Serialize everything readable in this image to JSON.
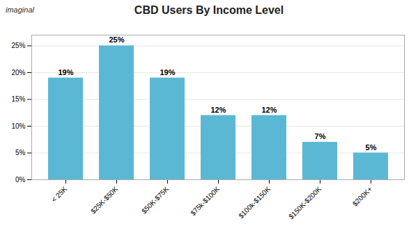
{
  "chart_data": {
    "type": "bar",
    "title": "CBD Users By Income Level",
    "categories": [
      "< 25K",
      "$25K-$50K",
      "$50K-$75K",
      "$75k-$100K",
      "$100k-$150K",
      "$150K-$200K",
      "$200K+"
    ],
    "values": [
      19,
      25,
      19,
      12,
      12,
      7,
      5
    ],
    "value_labels": [
      "19%",
      "25%",
      "19%",
      "12%",
      "12%",
      "7%",
      "5%"
    ],
    "data_labels": true,
    "color": "#5BB8D4",
    "ylim": [
      0,
      27
    ],
    "yticks": [
      {
        "value": 0,
        "label": "0%"
      },
      {
        "value": 5,
        "label": "5%"
      },
      {
        "value": 10,
        "label": "10%"
      },
      {
        "value": 15,
        "label": "15%"
      },
      {
        "value": 20,
        "label": "20%"
      },
      {
        "value": 25,
        "label": "25%"
      }
    ],
    "grid": true,
    "annotations": [
      "imaginal"
    ]
  }
}
